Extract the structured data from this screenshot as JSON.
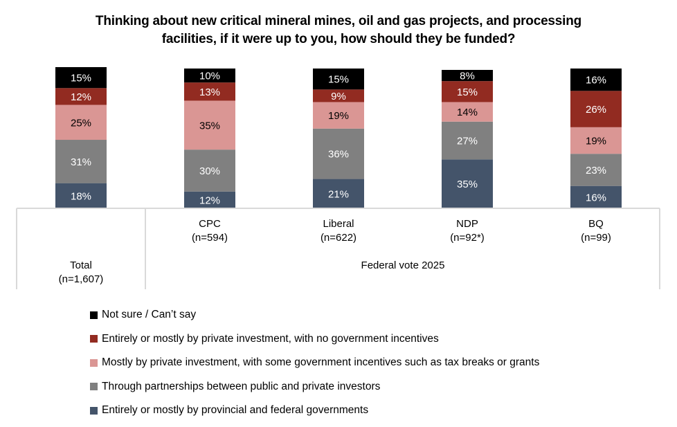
{
  "chart_data": {
    "type": "bar",
    "stacked": true,
    "title": "Thinking about new critical mineral mines, oil and gas projects, and processing facilities, if it were up to you, how should they be funded?",
    "title_lines": [
      "Thinking about new critical mineral mines, oil and gas projects, and processing",
      "facilities, if it were up to you, how should they be funded?"
    ],
    "categories": [
      {
        "name": "Total",
        "n": "(n=1,607)"
      },
      {
        "name": "CPC",
        "n": "(n=594)"
      },
      {
        "name": "Liberal",
        "n": "(n=622)"
      },
      {
        "name": "NDP",
        "n": "(n=92*)"
      },
      {
        "name": "BQ",
        "n": "(n=99)"
      }
    ],
    "group_label": "Federal vote 2025",
    "ylim": [
      0,
      100
    ],
    "series": [
      {
        "name": "Entirely or mostly by provincial and federal governments",
        "color": "#44546a",
        "label_color": "#ffffff",
        "values": [
          18,
          12,
          21,
          35,
          16
        ]
      },
      {
        "name": "Through partnerships between public and private investors",
        "color": "#808080",
        "label_color": "#ffffff",
        "values": [
          31,
          30,
          36,
          27,
          23
        ]
      },
      {
        "name": "Mostly by private investment, with some government incentives such as tax breaks or grants",
        "color": "#da9694",
        "label_color": "#000000",
        "values": [
          25,
          35,
          19,
          14,
          19
        ]
      },
      {
        "name": "Entirely or mostly by private investment, with no government incentives",
        "color": "#922b21",
        "label_color": "#ffffff",
        "values": [
          12,
          13,
          9,
          15,
          26
        ]
      },
      {
        "name": "Not sure / Can’t say",
        "color": "#000000",
        "label_color": "#ffffff",
        "values": [
          15,
          10,
          15,
          8,
          16
        ]
      }
    ],
    "legend_order": [
      4,
      3,
      2,
      1,
      0
    ],
    "legend_position": "bottom",
    "grid": false
  }
}
